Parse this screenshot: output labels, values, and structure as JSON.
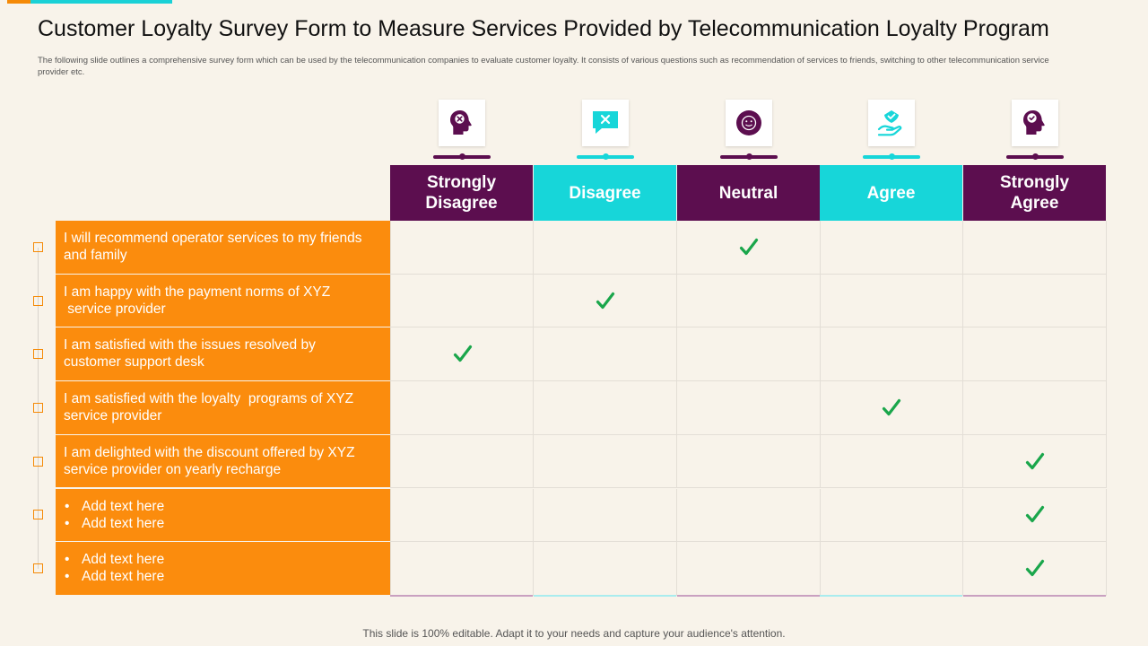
{
  "title": "Customer Loyalty Survey Form to Measure Services Provided by Telecommunication Loyalty Program",
  "subtitle": "The following slide outlines a comprehensive survey form which can be used by the telecommunication companies to evaluate customer loyalty. It consists of various questions such as recommendation of services to friends, switching to other telecommunication service provider etc.",
  "colors": {
    "purple": "#5c0e4f",
    "cyan": "#17d6d9",
    "orange": "#fb8c0d",
    "check_green": "#1aa64b",
    "background": "#f8f3ea"
  },
  "columns": [
    {
      "label": "Strongly Disagree",
      "lines": [
        "Strongly",
        "Disagree"
      ],
      "icon": "head-x-icon",
      "color": "purple"
    },
    {
      "label": "Disagree",
      "lines": [
        "Disagree"
      ],
      "icon": "speech-bubble-x-icon",
      "color": "cyan"
    },
    {
      "label": "Neutral",
      "lines": [
        "Neutral"
      ],
      "icon": "neutral-face-icon",
      "color": "purple"
    },
    {
      "label": "Agree",
      "lines": [
        "Agree"
      ],
      "icon": "hand-heart-check-icon",
      "color": "cyan"
    },
    {
      "label": "Strongly Agree",
      "lines": [
        "Strongly",
        "Agree"
      ],
      "icon": "head-check-icon",
      "color": "purple"
    }
  ],
  "rows": [
    {
      "lines": [
        "I will recommend operator services to my friends",
        "and family"
      ],
      "bullets": false,
      "selected": 2
    },
    {
      "lines": [
        "I am happy with the payment norms of XYZ",
        " service provider"
      ],
      "bullets": false,
      "selected": 1
    },
    {
      "lines": [
        "I am satisfied with the issues resolved by",
        "customer support desk"
      ],
      "bullets": false,
      "selected": 0
    },
    {
      "lines": [
        "I am satisfied with the loyalty  programs of XYZ",
        "service provider"
      ],
      "bullets": false,
      "selected": 3
    },
    {
      "lines": [
        "I am delighted with the discount offered by XYZ",
        "service provider on yearly recharge"
      ],
      "bullets": false,
      "selected": 4
    },
    {
      "lines": [
        "Add text here",
        "Add text here"
      ],
      "bullets": true,
      "selected": 4
    },
    {
      "lines": [
        "Add text here",
        "Add text here"
      ],
      "bullets": true,
      "selected": 4
    }
  ],
  "footer": "This slide is 100% editable. Adapt it to your needs and capture your audience's attention."
}
